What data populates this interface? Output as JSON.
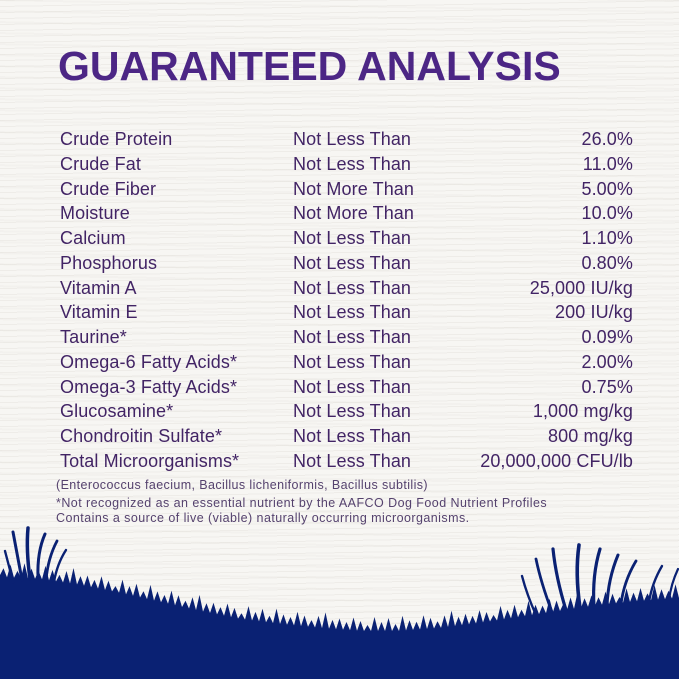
{
  "title": "GUARANTEED ANALYSIS",
  "table": {
    "rows": [
      {
        "nutrient": "Crude Protein",
        "comparator": "Not Less Than",
        "value": "26.0%"
      },
      {
        "nutrient": "Crude Fat",
        "comparator": "Not Less Than",
        "value": "11.0%"
      },
      {
        "nutrient": "Crude Fiber",
        "comparator": "Not More Than",
        "value": "5.00%"
      },
      {
        "nutrient": "Moisture",
        "comparator": "Not More Than",
        "value": "10.0%"
      },
      {
        "nutrient": "Calcium",
        "comparator": "Not Less Than",
        "value": "1.10%"
      },
      {
        "nutrient": "Phosphorus",
        "comparator": "Not Less Than",
        "value": "0.80%"
      },
      {
        "nutrient": "Vitamin A",
        "comparator": "Not Less Than",
        "value": "25,000 IU/kg"
      },
      {
        "nutrient": "Vitamin E",
        "comparator": "Not Less Than",
        "value": "200 IU/kg"
      },
      {
        "nutrient": "Taurine*",
        "comparator": "Not Less Than",
        "value": "0.09%"
      },
      {
        "nutrient": "Omega-6 Fatty Acids*",
        "comparator": "Not Less Than",
        "value": "2.00%"
      },
      {
        "nutrient": "Omega-3 Fatty Acids*",
        "comparator": "Not Less Than",
        "value": "0.75%"
      },
      {
        "nutrient": "Glucosamine*",
        "comparator": "Not Less Than",
        "value": "1,000 mg/kg"
      },
      {
        "nutrient": "Chondroitin Sulfate*",
        "comparator": "Not Less Than",
        "value": "800 mg/kg"
      },
      {
        "nutrient": "Total Microorganisms*",
        "comparator": "Not Less Than",
        "value": "20,000,000 CFU/lb"
      }
    ]
  },
  "notes": {
    "species": "(Enterococcus faecium, Bacillus licheniformis, Bacillus subtilis)",
    "footnote_line1": "*Not recognized as an essential nutrient by the AAFCO Dog Food Nutrient Profiles",
    "footnote_line2": "Contains a source of live (viable) naturally occurring microorganisms."
  },
  "colors": {
    "title_purple": "#4c2685",
    "body_purple": "#422465",
    "note_purple": "#55426e",
    "grass_navy": "#0a2173",
    "background": "#f7f6f3"
  }
}
